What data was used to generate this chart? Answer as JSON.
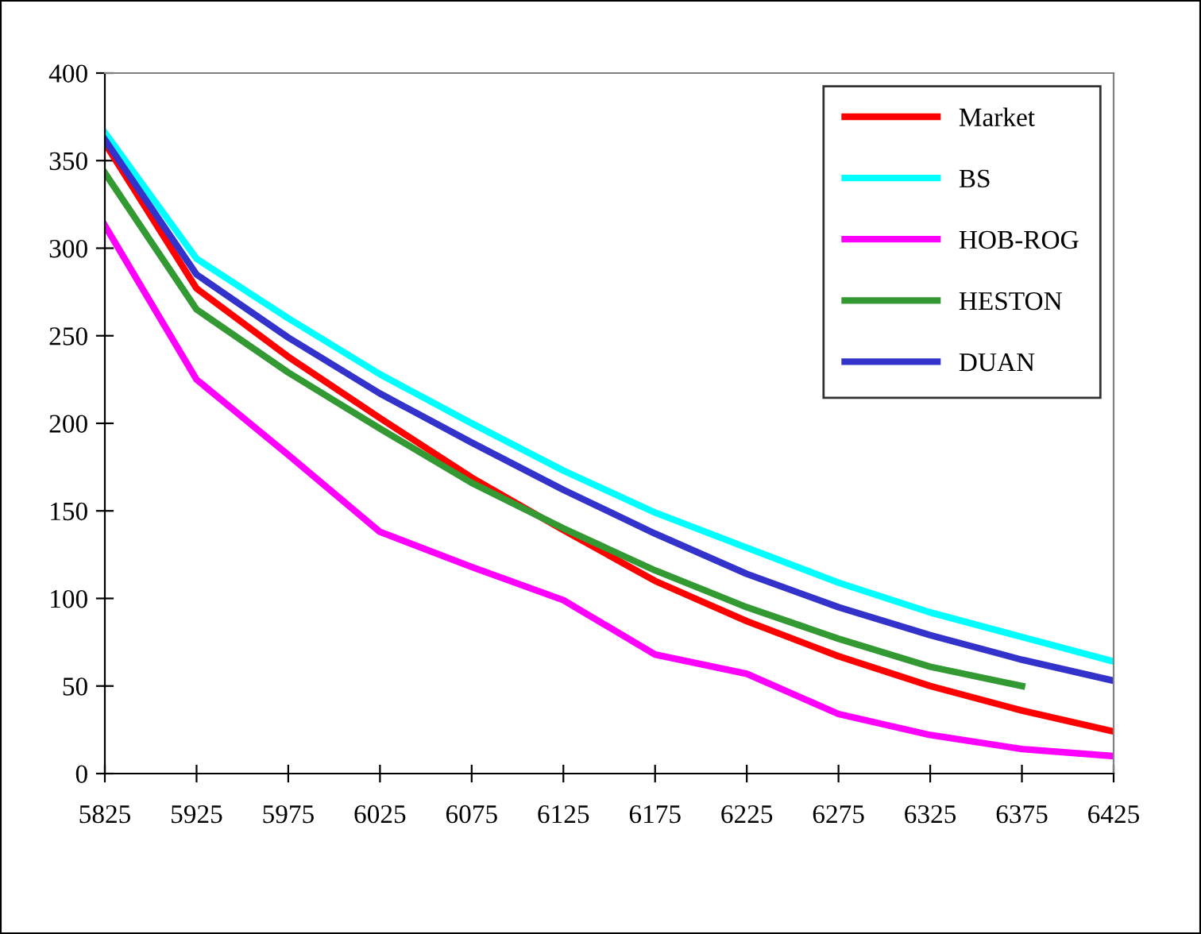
{
  "chart_data": {
    "type": "line",
    "categories": [
      "5825",
      "5925",
      "5975",
      "6025",
      "6075",
      "6125",
      "6175",
      "6225",
      "6275",
      "6325",
      "6375",
      "6425"
    ],
    "ylim": [
      0,
      400
    ],
    "yticks": [
      0,
      50,
      100,
      150,
      200,
      250,
      300,
      350,
      400
    ],
    "grid": false,
    "legend": "top right",
    "marker": "none",
    "line_style": "solid",
    "series": [
      {
        "name": "Market",
        "color": "#ff0000",
        "values": [
          360,
          277,
          238,
          203,
          169,
          139,
          110,
          87,
          67,
          50,
          36,
          24
        ]
      },
      {
        "name": "BS",
        "color": "#00ffff",
        "values": [
          366,
          294,
          260,
          228,
          200,
          173,
          149,
          129,
          109,
          92,
          78,
          64
        ]
      },
      {
        "name": "HOB-ROG",
        "color": "#ff00ff",
        "values": [
          313,
          225,
          182,
          138,
          118,
          99,
          68,
          57,
          34,
          22,
          14,
          10
        ]
      },
      {
        "name": "HESTON",
        "color": "#339933",
        "values": [
          343,
          265,
          229,
          197,
          166,
          140,
          116,
          95,
          77,
          61,
          50,
          null
        ]
      },
      {
        "name": "DUAN",
        "color": "#3333cc",
        "values": [
          362,
          285,
          249,
          217,
          189,
          162,
          137,
          114,
          95,
          79,
          65,
          53
        ]
      }
    ]
  }
}
